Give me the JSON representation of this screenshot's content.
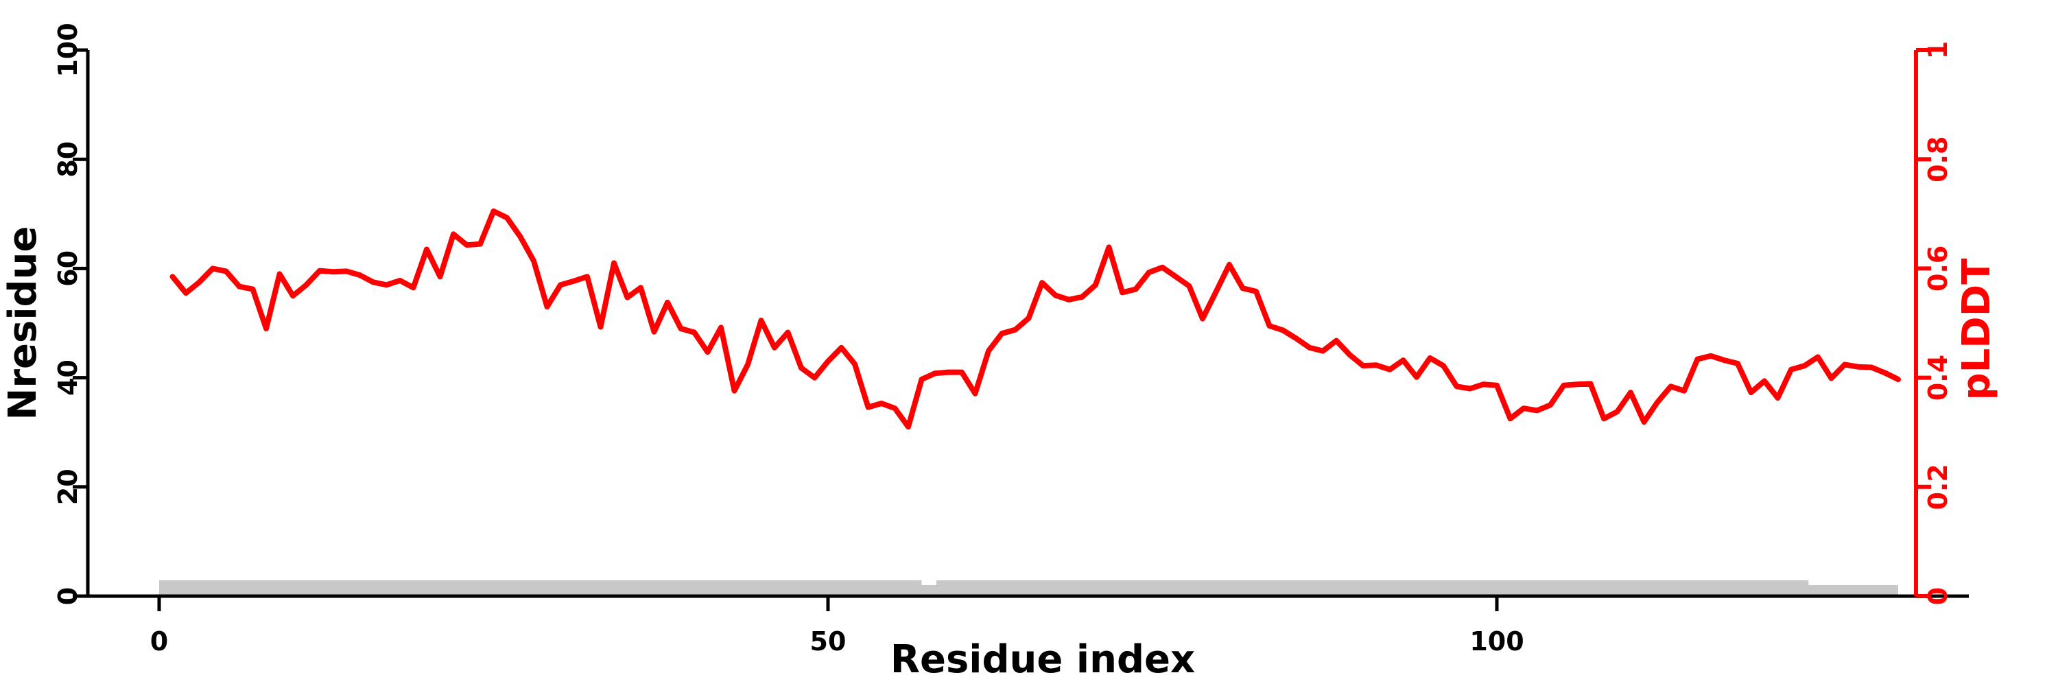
{
  "chart_data": {
    "type": "line",
    "title": "",
    "xlabel": "Residue index",
    "ylabel_left": "Nresidue",
    "ylabel_right": "pLDDT",
    "x_ticks": [
      "0",
      "50",
      "100"
    ],
    "x_tick_values": [
      0,
      50,
      100
    ],
    "left_ticks": [
      "0",
      "20",
      "40",
      "60",
      "80",
      "100"
    ],
    "left_tick_values": [
      0,
      20,
      40,
      60,
      80,
      100
    ],
    "right_ticks": [
      "0",
      "0.2",
      "0.4",
      "0.6",
      "0.8",
      "1"
    ],
    "right_tick_values": [
      0,
      0.2,
      0.4,
      0.6,
      0.8,
      1
    ],
    "xlim": [
      0,
      131
    ],
    "ylim_left": [
      0,
      100
    ],
    "ylim_right": [
      0,
      1
    ],
    "legend": "none",
    "grid": "off",
    "x_start": 1,
    "series": [
      {
        "name": "pLDDT",
        "values": [
          0.585,
          0.555,
          0.575,
          0.6,
          0.595,
          0.567,
          0.562,
          0.49,
          0.59,
          0.55,
          0.57,
          0.596,
          0.594,
          0.595,
          0.588,
          0.575,
          0.57,
          0.578,
          0.565,
          0.635,
          0.585,
          0.663,
          0.643,
          0.645,
          0.705,
          0.693,
          0.658,
          0.614,
          0.53,
          0.57,
          0.577,
          0.585,
          0.493,
          0.61,
          0.547,
          0.565,
          0.484,
          0.538,
          0.49,
          0.483,
          0.447,
          0.492,
          0.376,
          0.424,
          0.505,
          0.455,
          0.483,
          0.418,
          0.4,
          0.43,
          0.455,
          0.425,
          0.346,
          0.353,
          0.344,
          0.31,
          0.397,
          0.408,
          0.41,
          0.41,
          0.371,
          0.449,
          0.481,
          0.488,
          0.509,
          0.574,
          0.551,
          0.543,
          0.548,
          0.57,
          0.639,
          0.556,
          0.562,
          0.593,
          0.602,
          0.585,
          0.568,
          0.508,
          0.557,
          0.607,
          0.564,
          0.558,
          0.495,
          0.487,
          0.472,
          0.455,
          0.449,
          0.468,
          0.442,
          0.422,
          0.423,
          0.415,
          0.432,
          0.401,
          0.436,
          0.422,
          0.384,
          0.38,
          0.388,
          0.386,
          0.325,
          0.344,
          0.34,
          0.35,
          0.386,
          0.388,
          0.389,
          0.325,
          0.338,
          0.373,
          0.319,
          0.355,
          0.384,
          0.376,
          0.434,
          0.44,
          0.432,
          0.426,
          0.373,
          0.394,
          0.363,
          0.415,
          0.422,
          0.438,
          0.399,
          0.424,
          0.42,
          0.419,
          0.409,
          0.397
        ]
      }
    ],
    "gray_bars": [
      {
        "from": 0.0,
        "to": 130.0,
        "tall": false
      },
      {
        "from": 0.0,
        "to": 57.0,
        "tall": true
      },
      {
        "from": 58.1,
        "to": 123.3,
        "tall": true
      }
    ]
  },
  "colors": {
    "line": "#ff0000",
    "right_axis": "#ff0000",
    "left_axis": "#000000",
    "bar": "#c8c8c8",
    "background": "#ffffff"
  }
}
